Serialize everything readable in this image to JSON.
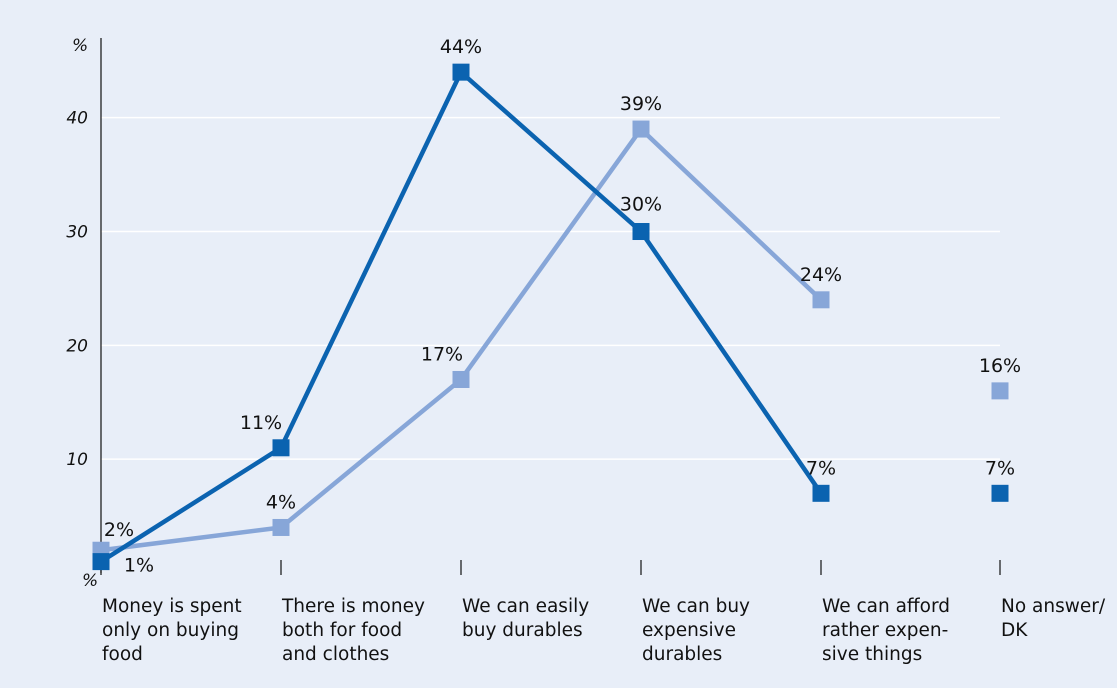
{
  "colors": {
    "background": "#e8eef8",
    "grid": "#ffffff",
    "axis": "#111111",
    "series_dark": "#0b63b0",
    "series_light": "#87a6d8"
  },
  "chart_data": {
    "type": "line",
    "ylabel": "%",
    "y_zero_label": "%",
    "ylim": [
      0,
      47
    ],
    "yticks": [
      10,
      20,
      30,
      40
    ],
    "grid": true,
    "categories": [
      [
        "Money is spent",
        "only on buying",
        "food"
      ],
      [
        "There is money",
        "both for food",
        "and clothes"
      ],
      [
        "We can easily",
        "buy durables"
      ],
      [
        "We can buy",
        "expensive",
        "durables"
      ],
      [
        "We can afford",
        "rather expen-",
        "sive things"
      ],
      [
        "No answer/",
        "DK"
      ]
    ],
    "series": [
      {
        "color": "#87a6d8",
        "values": [
          2,
          4,
          17,
          39,
          24,
          16
        ],
        "labels": [
          "2%",
          "4%",
          "17%",
          "39%",
          "24%",
          "16%"
        ],
        "connected_points": 5
      },
      {
        "color": "#0b63b0",
        "values": [
          1,
          11,
          44,
          30,
          7,
          7
        ],
        "labels": [
          "1%",
          "11%",
          "44%",
          "30%",
          "7%",
          "7%"
        ],
        "connected_points": 5
      }
    ]
  }
}
